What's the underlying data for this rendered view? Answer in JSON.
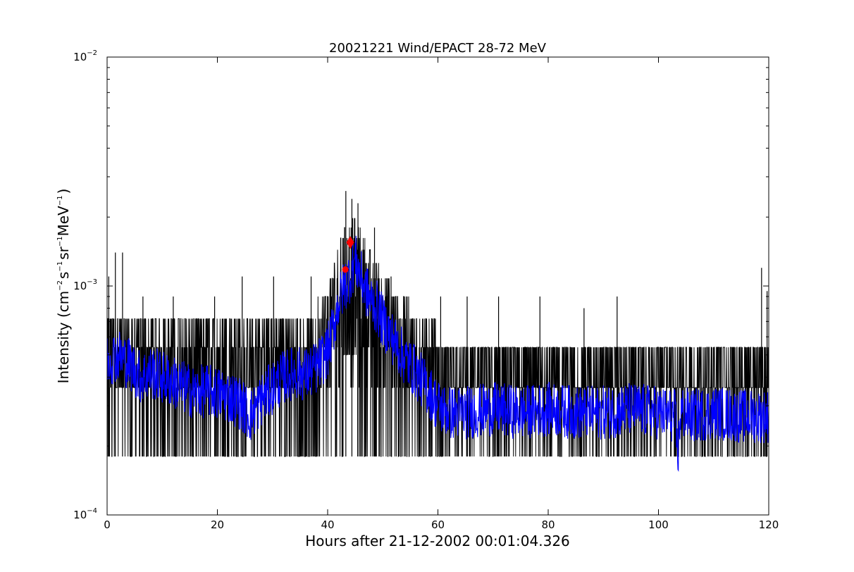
{
  "chart_data": {
    "type": "line",
    "title": "20021221 Wind/EPACT 28-72 MeV",
    "xlabel": "Hours after 21-12-2002 00:01:04.326",
    "ylabel": {
      "prefix": "Intensity (cm",
      "sup1": "−2",
      "mid1": "s",
      "sup2": "−1",
      "mid2": "sr",
      "sup3": "−1",
      "mid3": "MeV",
      "sup4": "−1",
      "suffix": ")"
    },
    "xlim": [
      0,
      120
    ],
    "ylim": [
      0.0001,
      0.01
    ],
    "yscale": "log",
    "grid": false,
    "x_ticks": [
      "0",
      "20",
      "40",
      "60",
      "80",
      "100",
      "120"
    ],
    "x_tick_values": [
      0,
      20,
      40,
      60,
      80,
      100,
      120
    ],
    "y_ticks": [
      {
        "value": 0.0001,
        "base": "10",
        "exp": "−4"
      },
      {
        "value": 0.001,
        "base": "10",
        "exp": "−3"
      },
      {
        "value": 0.01,
        "base": "10",
        "exp": "−2"
      }
    ],
    "series": [
      {
        "color": "#000000",
        "style": "noisy raw data",
        "envelope": {
          "x": [
            0,
            5,
            10,
            15,
            20,
            25,
            30,
            35,
            38,
            40,
            41,
            42,
            43,
            44,
            45,
            46,
            47,
            48,
            50,
            52,
            55,
            58,
            60,
            65,
            70,
            75,
            80,
            85,
            90,
            95,
            100,
            103,
            105,
            110,
            115,
            120
          ],
          "low": [
            0.00018,
            0.00018,
            0.00018,
            0.00018,
            0.00018,
            0.00018,
            0.00018,
            0.00018,
            0.00018,
            0.00018,
            0.00018,
            0.00018,
            0.00018,
            0.00018,
            0.00018,
            0.00018,
            0.00018,
            0.00018,
            0.00018,
            0.00018,
            0.00018,
            0.00018,
            0.00018,
            0.00018,
            0.00018,
            0.00018,
            0.00018,
            0.00018,
            0.00018,
            0.00018,
            0.00018,
            0.00018,
            0.00018,
            0.00018,
            0.00018,
            0.00018
          ],
          "high": [
            0.0009,
            0.0009,
            0.0009,
            0.0009,
            0.0009,
            0.0009,
            0.0009,
            0.0009,
            0.0009,
            0.001,
            0.0013,
            0.0016,
            0.002,
            0.0022,
            0.002,
            0.0018,
            0.0016,
            0.0014,
            0.0012,
            0.001,
            0.0009,
            0.0008,
            0.0007,
            0.0006,
            0.0006,
            0.0006,
            0.0006,
            0.0006,
            0.0006,
            0.0006,
            0.0006,
            0.0006,
            0.0006,
            0.0006,
            0.0006,
            0.0006
          ]
        },
        "spikes": [
          {
            "x": 0.3,
            "y": 0.0011
          },
          {
            "x": 1.5,
            "y": 0.0014
          },
          {
            "x": 2.8,
            "y": 0.0014
          },
          {
            "x": 6.5,
            "y": 0.0009
          },
          {
            "x": 12,
            "y": 0.0009
          },
          {
            "x": 19.5,
            "y": 0.0009
          },
          {
            "x": 24.5,
            "y": 0.0011
          },
          {
            "x": 30.2,
            "y": 0.0011
          },
          {
            "x": 37,
            "y": 0.0011
          },
          {
            "x": 43.3,
            "y": 0.0026
          },
          {
            "x": 44.4,
            "y": 0.0024
          },
          {
            "x": 45.5,
            "y": 0.0023
          },
          {
            "x": 48.5,
            "y": 0.0018
          },
          {
            "x": 51.5,
            "y": 0.0011
          },
          {
            "x": 60.5,
            "y": 0.0009
          },
          {
            "x": 65.3,
            "y": 0.0009
          },
          {
            "x": 71,
            "y": 0.0009
          },
          {
            "x": 78.5,
            "y": 0.0009
          },
          {
            "x": 86.5,
            "y": 0.0008
          },
          {
            "x": 92.5,
            "y": 0.0009
          },
          {
            "x": 118.7,
            "y": 0.0012
          },
          {
            "x": 119.7,
            "y": 0.00095
          }
        ]
      },
      {
        "color": "#0000ff",
        "style": "smoothed data",
        "x": [
          0,
          2,
          4,
          6,
          8,
          10,
          12,
          14,
          16,
          18,
          20,
          22,
          24,
          26,
          28,
          30,
          32,
          34,
          36,
          38,
          40,
          41,
          42,
          43,
          44,
          45,
          46,
          47,
          48,
          49,
          50,
          52,
          54,
          56,
          58,
          60,
          62,
          65,
          70,
          75,
          80,
          85,
          90,
          95,
          100,
          103,
          103.5,
          104,
          106,
          110,
          115,
          120
        ],
        "y": [
          0.00048,
          0.0005,
          0.00046,
          0.0004,
          0.00042,
          0.0004,
          0.00038,
          0.00036,
          0.00034,
          0.00035,
          0.00034,
          0.00033,
          0.00031,
          0.00027,
          0.00032,
          0.00036,
          0.0004,
          0.00042,
          0.00041,
          0.00044,
          0.00052,
          0.00065,
          0.00085,
          0.001,
          0.0011,
          0.0013,
          0.0011,
          0.00095,
          0.00085,
          0.0008,
          0.0007,
          0.00058,
          0.00048,
          0.00042,
          0.00036,
          0.0003,
          0.00028,
          0.00028,
          0.00029,
          0.00028,
          0.00029,
          0.00028,
          0.00028,
          0.00029,
          0.00028,
          0.00027,
          0.00018,
          0.00028,
          0.00027,
          0.00028,
          0.00027,
          0.00027
        ]
      }
    ],
    "markers": [
      {
        "x": 43.2,
        "y": 0.00118,
        "color": "#ff0000",
        "shape": "circle"
      },
      {
        "x": 44.1,
        "y": 0.00155,
        "color": "#ff0000",
        "shape": "diamond"
      }
    ]
  }
}
